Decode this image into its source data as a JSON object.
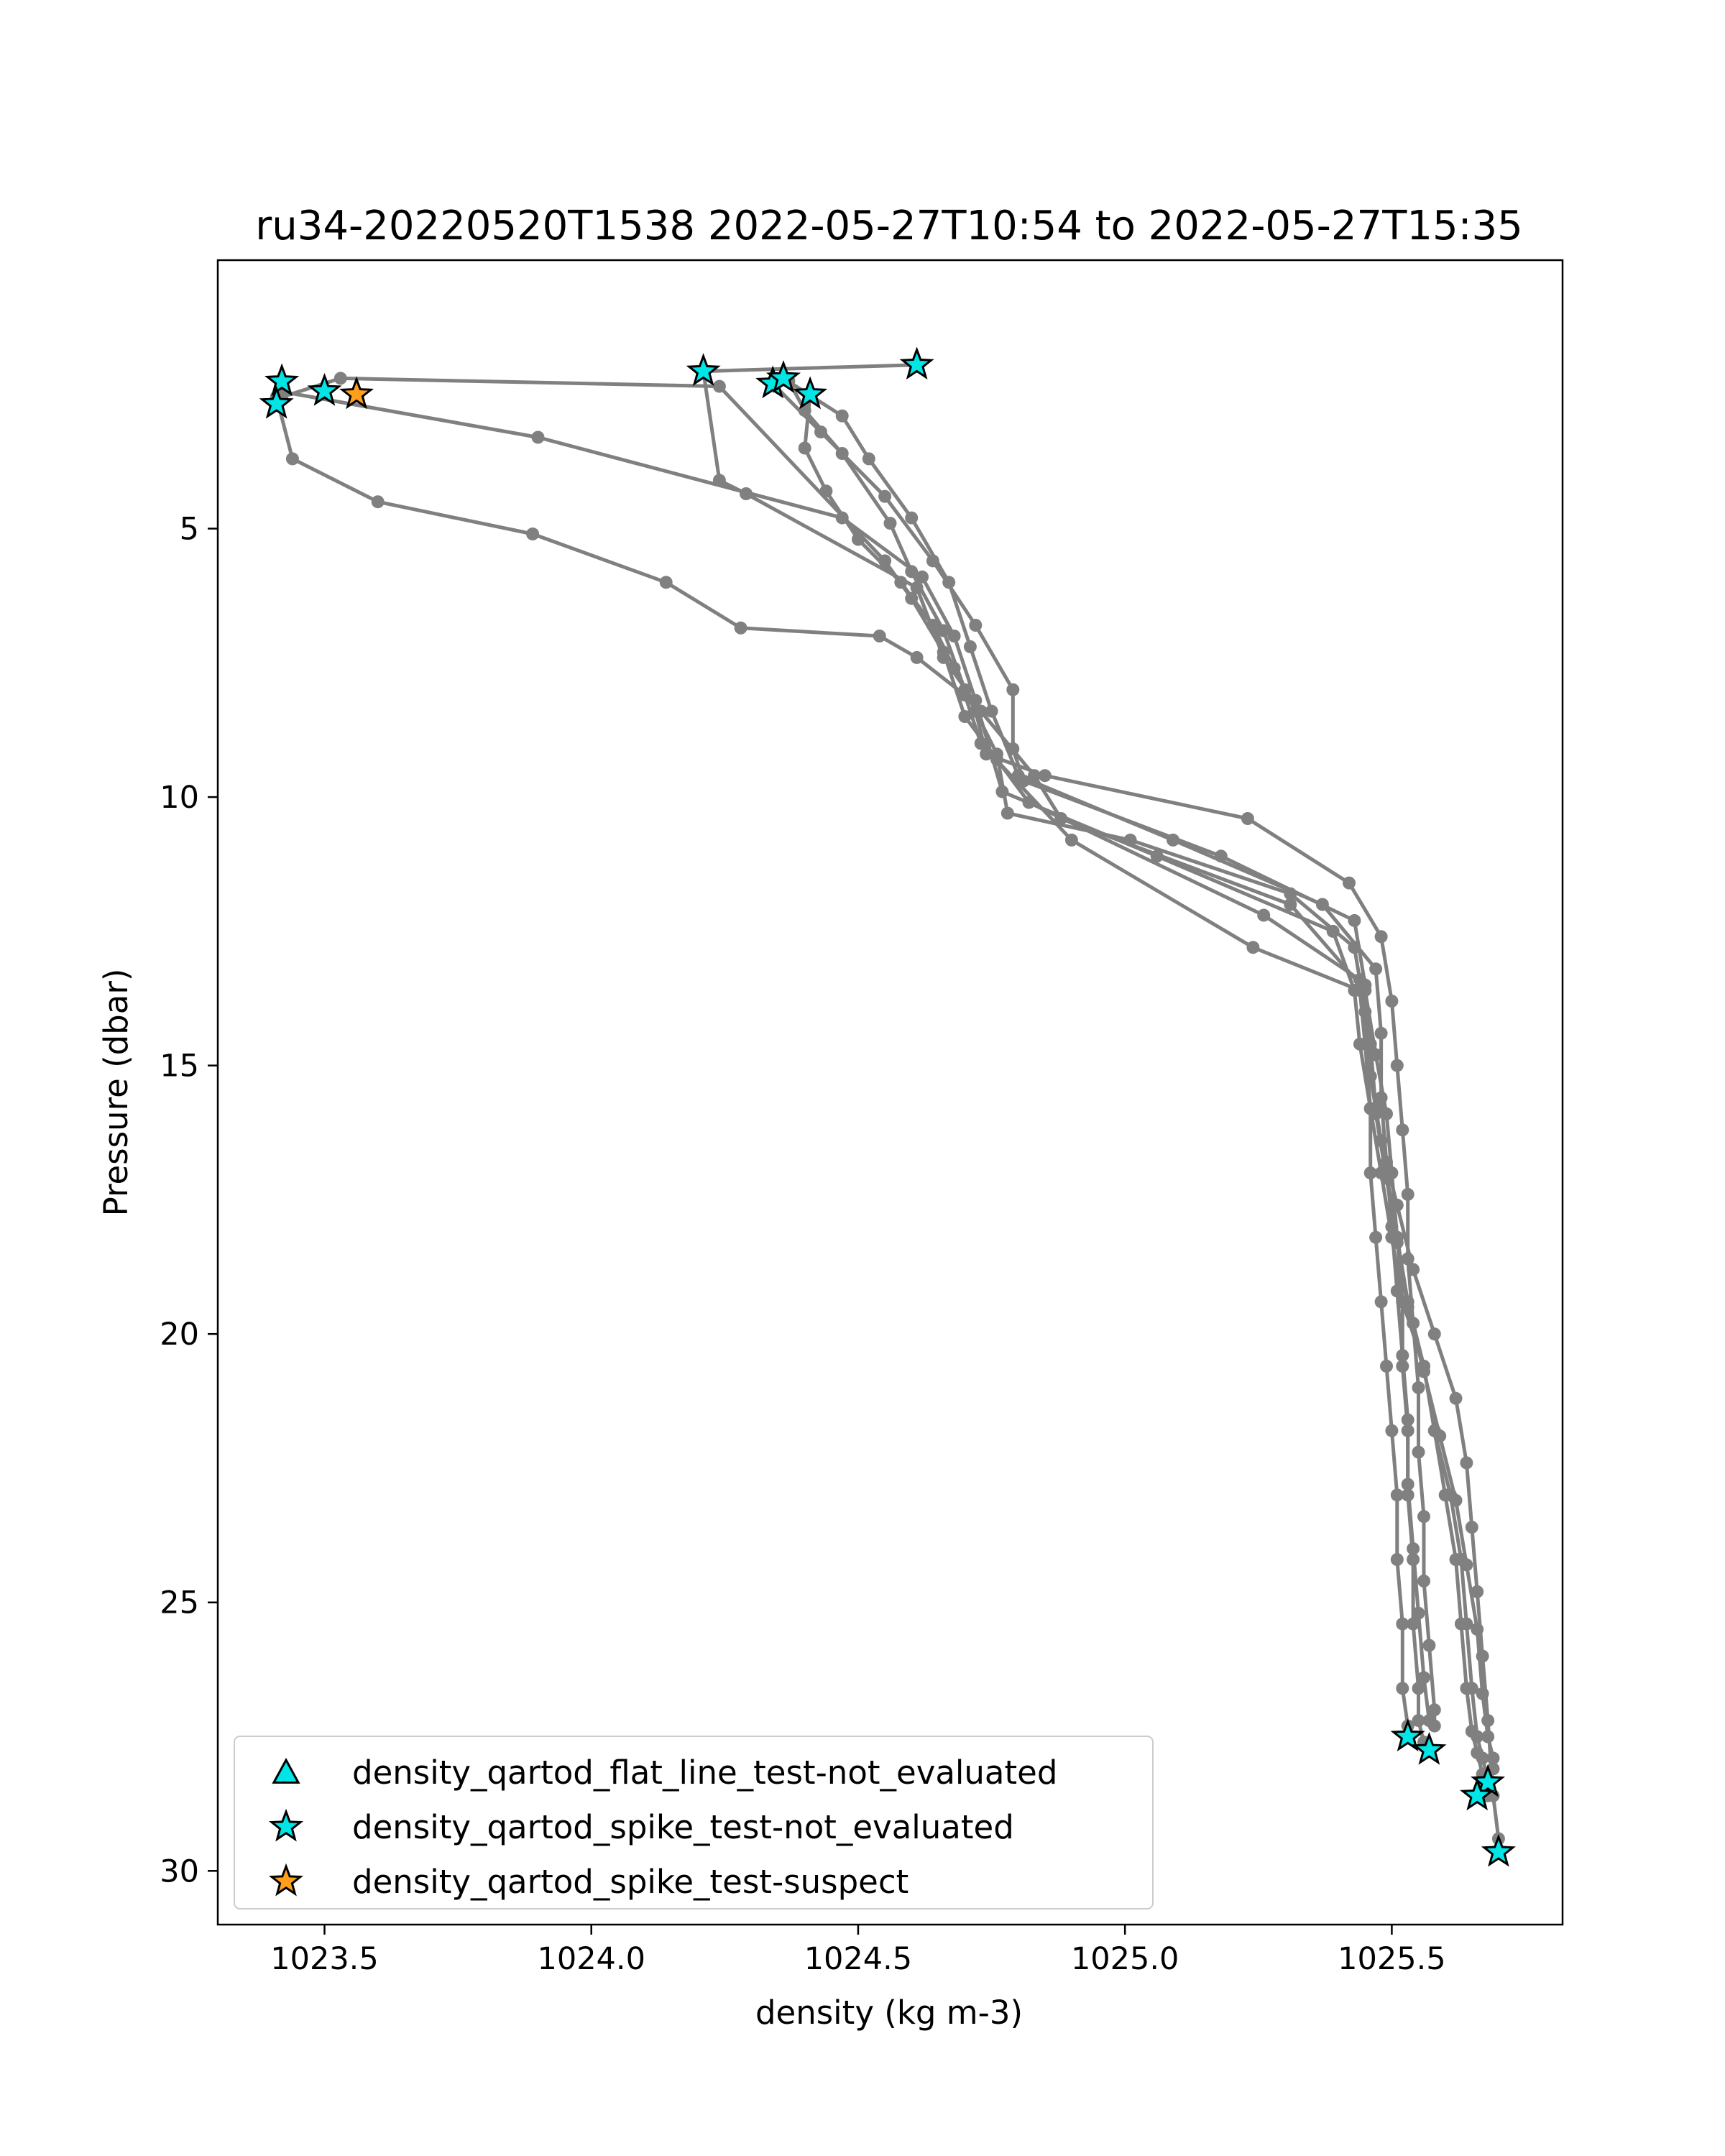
{
  "chart_data": {
    "type": "scatter",
    "title": "ru34-20220520T1538 2022-05-27T10:54 to 2022-05-27T15:35",
    "xlabel": "density (kg m-3)",
    "ylabel": "Pressure (dbar)",
    "xlim": [
      1023.3,
      1025.82
    ],
    "ylim": [
      31.0,
      0.0
    ],
    "y_inverted": true,
    "grid": false,
    "legend_position": "lower-left",
    "xticks": [
      1023.5,
      1024.0,
      1024.5,
      1025.0,
      1025.5
    ],
    "xtick_labels": [
      "1023.5",
      "1024.0",
      "1024.5",
      "1025.0",
      "1025.5"
    ],
    "yticks": [
      5,
      10,
      15,
      20,
      25,
      30
    ],
    "ytick_labels": [
      "5",
      "10",
      "15",
      "20",
      "25",
      "30"
    ],
    "colors": {
      "profile_line": "#808080",
      "not_evaluated": "#00e5e5",
      "suspect": "#ff9f1c",
      "marker_edge": "#000000"
    },
    "profiles": [
      {
        "x": [
          1024.61,
          1024.21,
          1024.24,
          1024.29,
          1024.61,
          1024.66,
          1024.73,
          1024.83,
          1024.88,
          1025.31,
          1025.45,
          1025.47,
          1025.49,
          1025.5,
          1025.51,
          1025.52,
          1025.52,
          1025.53,
          1025.53,
          1025.54,
          1025.54,
          1025.55,
          1025.55,
          1025.56,
          1025.57
        ],
        "y": [
          1.95,
          2.07,
          4.1,
          4.35,
          6.1,
          7.4,
          8.4,
          9.6,
          10.4,
          12.0,
          13.6,
          14.8,
          15.9,
          17.0,
          18.2,
          19.4,
          20.6,
          21.8,
          23.0,
          24.2,
          25.4,
          26.6,
          27.2,
          27.6,
          27.75
        ]
      },
      {
        "x": [
          1023.41,
          1023.44,
          1023.6,
          1023.89,
          1024.14,
          1024.28,
          1024.54,
          1024.61,
          1024.7,
          1024.73,
          1024.9,
          1025.24,
          1025.44,
          1025.45,
          1025.46,
          1025.46,
          1025.47,
          1025.48,
          1025.49,
          1025.5,
          1025.51,
          1025.51,
          1025.52,
          1025.52,
          1025.53,
          1025.53
        ],
        "y": [
          2.55,
          3.7,
          4.5,
          5.1,
          6.0,
          6.85,
          7.0,
          7.4,
          8.1,
          9.0,
          10.8,
          12.8,
          13.6,
          14.6,
          15.8,
          17.0,
          18.2,
          19.4,
          20.6,
          21.8,
          23.0,
          24.2,
          25.4,
          26.6,
          27.3,
          27.5
        ]
      },
      {
        "x": [
          1023.42,
          1023.53,
          1024.24,
          1024.55,
          1024.6,
          1024.66,
          1024.7,
          1024.76,
          1024.82,
          1025.26,
          1025.44,
          1025.46,
          1025.47,
          1025.49,
          1025.51,
          1025.53,
          1025.56,
          1025.58,
          1025.6,
          1025.62,
          1025.63,
          1025.64,
          1025.65,
          1025.66,
          1025.67,
          1025.68,
          1025.68
        ],
        "y": [
          2.55,
          2.2,
          2.35,
          5.6,
          6.3,
          7.3,
          8.5,
          9.3,
          10.1,
          12.2,
          13.4,
          14.6,
          15.8,
          17.0,
          18.2,
          19.4,
          20.6,
          21.8,
          23.0,
          24.2,
          25.4,
          26.6,
          27.4,
          27.8,
          28.2,
          28.35,
          28.4
        ]
      },
      {
        "x": [
          1023.42,
          1023.42,
          1023.9,
          1024.47,
          1024.62,
          1024.68,
          1024.72,
          1024.77,
          1025.06,
          1025.39,
          1025.43,
          1025.44,
          1025.46,
          1025.48,
          1025.5,
          1025.52,
          1025.56,
          1025.58,
          1025.61,
          1025.63,
          1025.64,
          1025.65,
          1025.66,
          1025.67,
          1025.68,
          1025.68,
          1025.68
        ],
        "y": [
          2.26,
          2.45,
          3.3,
          4.8,
          5.9,
          7.0,
          8.2,
          9.9,
          11.1,
          12.5,
          13.6,
          14.6,
          15.8,
          17.0,
          18.2,
          19.4,
          20.6,
          21.8,
          23.0,
          24.2,
          25.4,
          26.6,
          27.5,
          27.9,
          28.3,
          28.55,
          28.6
        ]
      },
      {
        "x": [
          1024.37,
          1024.4,
          1024.47,
          1024.56,
          1024.6,
          1024.66,
          1024.7,
          1024.76,
          1024.78,
          1025.01,
          1025.31,
          1025.43,
          1025.45,
          1025.46,
          1025.48,
          1025.51,
          1025.54,
          1025.58,
          1025.62,
          1025.64,
          1025.65,
          1025.66,
          1025.67,
          1025.68,
          1025.69,
          1025.7,
          1025.7
        ],
        "y": [
          2.25,
          2.8,
          3.6,
          4.9,
          5.8,
          6.9,
          8.0,
          9.2,
          10.3,
          10.8,
          11.8,
          12.8,
          14.0,
          15.2,
          16.4,
          17.6,
          18.8,
          20.0,
          21.2,
          22.4,
          23.6,
          24.8,
          26.0,
          27.2,
          28.6,
          29.4,
          29.65
        ]
      },
      {
        "x": [
          1024.41,
          1024.4,
          1024.44,
          1024.5,
          1024.58,
          1024.64,
          1024.68,
          1024.72,
          1024.74,
          1024.85,
          1025.23,
          1025.42,
          1025.48,
          1025.5,
          1025.51,
          1025.52,
          1025.53,
          1025.53,
          1025.54,
          1025.55,
          1025.55,
          1025.56,
          1025.56,
          1025.57,
          1025.58,
          1025.58
        ],
        "y": [
          2.5,
          3.5,
          4.3,
          5.2,
          6.0,
          6.8,
          7.6,
          8.4,
          9.2,
          9.6,
          10.4,
          11.6,
          12.6,
          13.8,
          15.0,
          16.2,
          17.4,
          18.6,
          19.8,
          21.0,
          22.2,
          23.4,
          24.6,
          25.8,
          27.0,
          27.3
        ]
      },
      {
        "x": [
          1024.34,
          1024.43,
          1024.55,
          1024.64,
          1024.72,
          1024.79,
          1024.79,
          1024.81,
          1025.18,
          1025.43,
          1025.45,
          1025.46,
          1025.47,
          1025.49,
          1025.51,
          1025.53,
          1025.56,
          1025.59,
          1025.62,
          1025.64,
          1025.66,
          1025.67,
          1025.68,
          1025.69,
          1025.69
        ],
        "y": [
          2.3,
          3.2,
          4.4,
          5.6,
          6.8,
          8.0,
          9.1,
          9.7,
          11.1,
          12.3,
          13.5,
          14.7,
          15.9,
          17.1,
          18.3,
          19.5,
          20.7,
          21.9,
          23.1,
          24.3,
          25.5,
          26.7,
          27.5,
          27.9,
          28.1
        ]
      },
      {
        "x": [
          1024.36,
          1024.47,
          1024.52,
          1024.6,
          1024.67,
          1024.71,
          1024.75,
          1024.8,
          1025.09,
          1025.37,
          1025.47,
          1025.48,
          1025.48,
          1025.49,
          1025.5,
          1025.51,
          1025.52,
          1025.53,
          1025.53,
          1025.54,
          1025.55,
          1025.56,
          1025.57
        ],
        "y": [
          2.2,
          2.9,
          3.7,
          4.8,
          6.0,
          7.2,
          8.4,
          9.6,
          10.8,
          12.0,
          13.2,
          14.4,
          15.6,
          16.8,
          18.0,
          19.2,
          20.4,
          21.6,
          22.8,
          24.0,
          25.2,
          26.4,
          27.2
        ]
      }
    ],
    "series": [
      {
        "name": "density_qartod_flat_line_test-not_evaluated",
        "marker": "triangle",
        "color": "#00e5e5",
        "points": []
      },
      {
        "name": "density_qartod_spike_test-not_evaluated",
        "marker": "star",
        "color": "#00e5e5",
        "points": [
          [
            1024.61,
            1.95
          ],
          [
            1024.21,
            2.07
          ],
          [
            1024.34,
            2.3
          ],
          [
            1024.36,
            2.2
          ],
          [
            1024.41,
            2.5
          ],
          [
            1023.42,
            2.26
          ],
          [
            1023.5,
            2.44
          ],
          [
            1023.41,
            2.68
          ],
          [
            1025.53,
            27.5
          ],
          [
            1025.57,
            27.75
          ],
          [
            1025.68,
            28.35
          ],
          [
            1025.66,
            28.6
          ],
          [
            1025.7,
            29.65
          ]
        ]
      },
      {
        "name": "density_qartod_spike_test-suspect",
        "marker": "star",
        "color": "#ff9f1c",
        "points": [
          [
            1023.56,
            2.5
          ]
        ]
      }
    ]
  }
}
